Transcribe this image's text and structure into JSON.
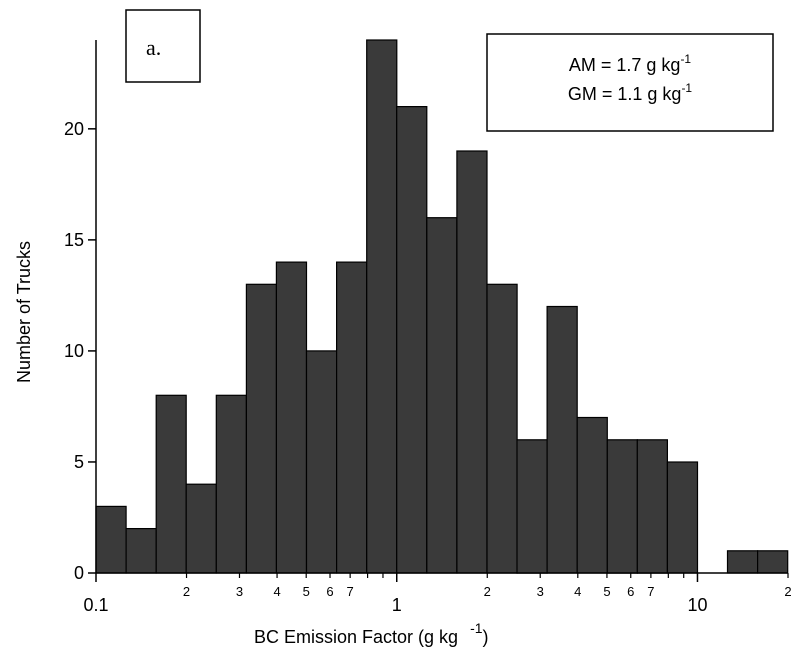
{
  "chart_data": {
    "type": "bar",
    "subtype": "histogram",
    "panel_label": "a.",
    "xlabel_main": "BC Emission Factor (g kg",
    "xlabel_exp": "-1",
    "xlabel_close": ")",
    "ylabel": "Number of Trucks",
    "x_scale": "log",
    "xlim": [
      0.1,
      20
    ],
    "ylim": [
      0,
      24
    ],
    "grid": false,
    "bin_edges": [
      0.1,
      0.1259,
      0.1585,
      0.1995,
      0.2512,
      0.3162,
      0.3981,
      0.5012,
      0.631,
      0.7943,
      1.0,
      1.2589,
      1.5849,
      1.9953,
      2.5119,
      3.1623,
      3.9811,
      5.0119,
      6.3096,
      7.9433,
      10.0,
      12.589,
      15.849,
      19.953
    ],
    "values": [
      3,
      2,
      8,
      4,
      8,
      13,
      14,
      10,
      14,
      24,
      21,
      16,
      19,
      13,
      6,
      12,
      7,
      6,
      6,
      5,
      0,
      1,
      1
    ],
    "bar_color": "#3a3a3a",
    "x_major_ticks": [
      {
        "value": 0.1,
        "label": "0.1"
      },
      {
        "value": 1,
        "label": "1"
      },
      {
        "value": 10,
        "label": "10"
      }
    ],
    "x_minor_ticks": [
      {
        "value": 0.2,
        "label": "2"
      },
      {
        "value": 0.3,
        "label": "3"
      },
      {
        "value": 0.4,
        "label": "4"
      },
      {
        "value": 0.5,
        "label": "5"
      },
      {
        "value": 0.6,
        "label": "6"
      },
      {
        "value": 0.7,
        "label": "7"
      },
      {
        "value": 0.8,
        "label": ""
      },
      {
        "value": 0.9,
        "label": ""
      },
      {
        "value": 2,
        "label": "2"
      },
      {
        "value": 3,
        "label": "3"
      },
      {
        "value": 4,
        "label": "4"
      },
      {
        "value": 5,
        "label": "5"
      },
      {
        "value": 6,
        "label": "6"
      },
      {
        "value": 7,
        "label": "7"
      },
      {
        "value": 8,
        "label": ""
      },
      {
        "value": 9,
        "label": ""
      },
      {
        "value": 20,
        "label": "2"
      }
    ],
    "y_ticks": [
      0,
      5,
      10,
      15,
      20
    ],
    "annotations": [
      {
        "main": "AM = 1.7 g kg",
        "exp": "-1"
      },
      {
        "main": "GM = 1.1 g kg",
        "exp": "-1"
      }
    ]
  }
}
